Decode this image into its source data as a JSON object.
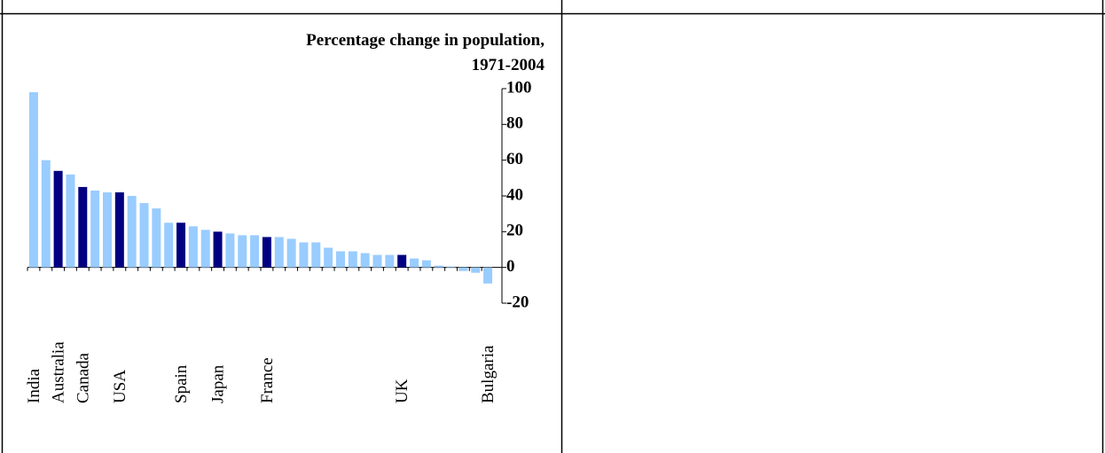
{
  "chart_data": {
    "type": "bar",
    "title": [
      "Percentage change in population,",
      "1971-2004"
    ],
    "categories": [
      "India",
      null,
      "Australia",
      null,
      "Canada",
      null,
      null,
      "USA",
      null,
      null,
      null,
      null,
      "Spain",
      null,
      null,
      "Japan",
      null,
      null,
      null,
      "France",
      null,
      null,
      null,
      null,
      null,
      null,
      null,
      null,
      null,
      null,
      "UK",
      null,
      null,
      null,
      null,
      null,
      null,
      "Bulgaria"
    ],
    "values": [
      98,
      60,
      54,
      52,
      45,
      43,
      42,
      42,
      40,
      36,
      33,
      25,
      25,
      23,
      21,
      20,
      19,
      18,
      18,
      17,
      17,
      16,
      14,
      14,
      11,
      9,
      9,
      8,
      7,
      7,
      7,
      5,
      4,
      1,
      0.5,
      -2,
      -3,
      -9
    ],
    "colors": [
      "#99ccff",
      "#99ccff",
      "#000080",
      "#99ccff",
      "#000080",
      "#99ccff",
      "#99ccff",
      "#000080",
      "#99ccff",
      "#99ccff",
      "#99ccff",
      "#99ccff",
      "#000080",
      "#99ccff",
      "#99ccff",
      "#000080",
      "#99ccff",
      "#99ccff",
      "#99ccff",
      "#000080",
      "#99ccff",
      "#99ccff",
      "#99ccff",
      "#99ccff",
      "#99ccff",
      "#99ccff",
      "#99ccff",
      "#99ccff",
      "#99ccff",
      "#99ccff",
      "#000080",
      "#99ccff",
      "#99ccff",
      "#99ccff",
      "#99ccff",
      "#99ccff",
      "#99ccff",
      "#99ccff"
    ],
    "ylim": [
      -20,
      100
    ],
    "yticks": [
      -20,
      0,
      20,
      40,
      60,
      80,
      100
    ],
    "y_axis_side": "right",
    "grid": false
  }
}
